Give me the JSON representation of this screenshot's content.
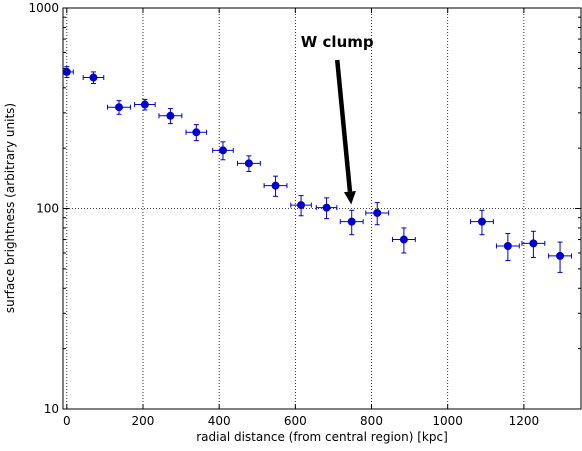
{
  "chart_data": {
    "type": "scatter",
    "title": "",
    "xlabel": "radial distance (from central region) [kpc]",
    "ylabel": "surface brightness (arbitrary units)",
    "xlim": [
      -10,
      1350
    ],
    "ylim": [
      10,
      1000
    ],
    "yscale": "log",
    "xticks": [
      0,
      200,
      400,
      600,
      800,
      1000,
      1200
    ],
    "xtick_labels": [
      "0",
      "200",
      "400",
      "600",
      "800",
      "1000",
      "1200"
    ],
    "yticks": [
      10,
      100,
      1000
    ],
    "ytick_labels": [
      "10",
      "100",
      "1000"
    ],
    "grid": "dotted",
    "marker_color": "#0000cc",
    "series": [
      {
        "x": [
          0,
          70,
          137,
          205,
          272,
          340,
          410,
          478,
          548,
          615,
          682,
          748,
          815,
          885,
          1090,
          1158,
          1225,
          1295
        ],
        "y": [
          480,
          450,
          320,
          330,
          290,
          240,
          195,
          168,
          130,
          104,
          101,
          86,
          95,
          70,
          86,
          65,
          67,
          58
        ],
        "x_err": [
          17,
          27,
          30,
          27,
          30,
          27,
          27,
          30,
          30,
          27,
          27,
          30,
          30,
          30,
          30,
          30,
          30,
          30
        ],
        "y_err_low": [
          30,
          30,
          25,
          20,
          25,
          22,
          20,
          15,
          15,
          12,
          12,
          12,
          12,
          10,
          12,
          10,
          10,
          10
        ],
        "y_err_high": [
          30,
          30,
          25,
          20,
          25,
          22,
          20,
          15,
          15,
          12,
          12,
          12,
          12,
          10,
          12,
          10,
          10,
          10
        ]
      }
    ],
    "annotations": [
      {
        "text": "W clump",
        "points_to_x": 748,
        "points_to_y": 100
      }
    ]
  }
}
